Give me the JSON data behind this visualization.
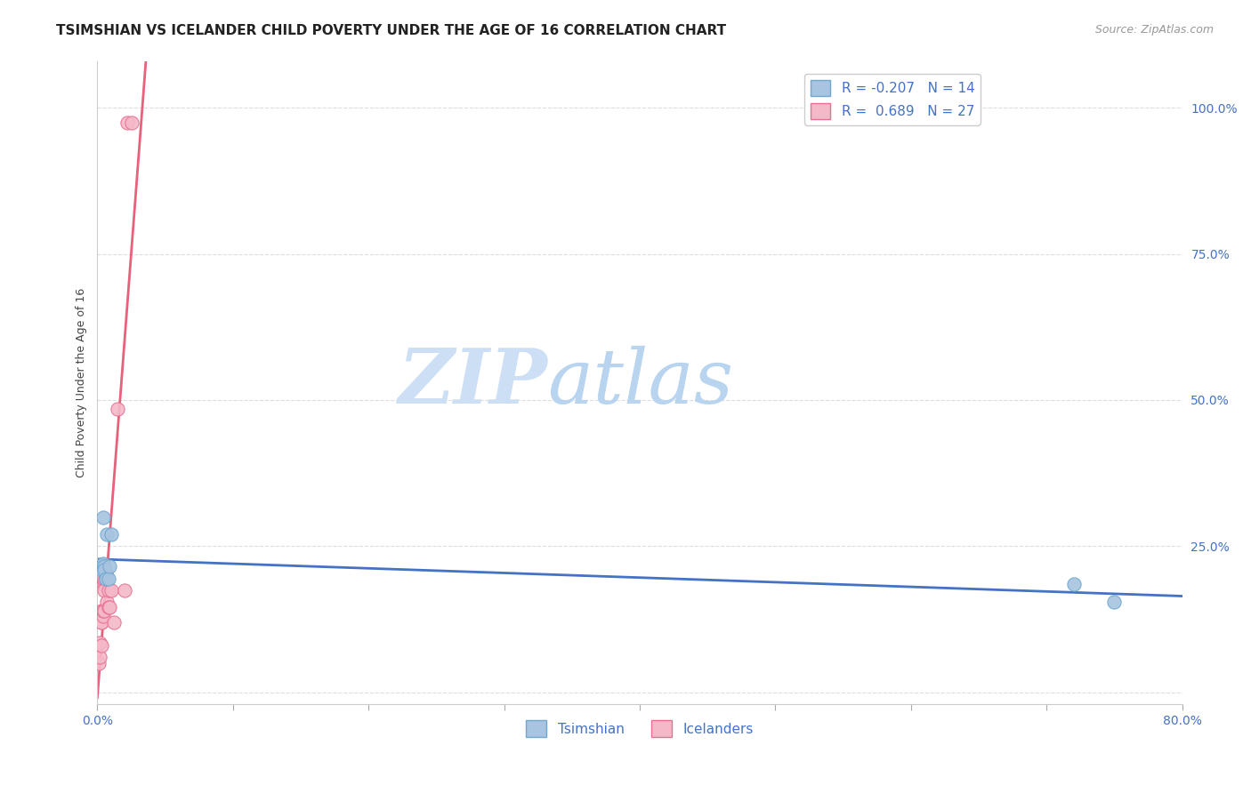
{
  "title": "TSIMSHIAN VS ICELANDER CHILD POVERTY UNDER THE AGE OF 16 CORRELATION CHART",
  "source": "Source: ZipAtlas.com",
  "ylabel": "Child Poverty Under the Age of 16",
  "xlim": [
    0.0,
    0.8
  ],
  "ylim": [
    -0.02,
    1.08
  ],
  "xticks": [
    0.0,
    0.1,
    0.2,
    0.3,
    0.4,
    0.5,
    0.6,
    0.7,
    0.8
  ],
  "xticklabels": [
    "0.0%",
    "",
    "",
    "",
    "",
    "",
    "",
    "",
    "80.0%"
  ],
  "yticks": [
    0.0,
    0.25,
    0.5,
    0.75,
    1.0
  ],
  "yticklabels": [
    "",
    "25.0%",
    "50.0%",
    "75.0%",
    "100.0%"
  ],
  "tsimshian_x": [
    0.004,
    0.003,
    0.003,
    0.004,
    0.004,
    0.005,
    0.005,
    0.006,
    0.007,
    0.008,
    0.009,
    0.01,
    0.72,
    0.75
  ],
  "tsimshian_y": [
    0.3,
    0.215,
    0.21,
    0.215,
    0.22,
    0.215,
    0.21,
    0.195,
    0.27,
    0.195,
    0.215,
    0.27,
    0.185,
    0.155
  ],
  "icelander_x": [
    0.001,
    0.002,
    0.002,
    0.003,
    0.003,
    0.003,
    0.003,
    0.004,
    0.004,
    0.004,
    0.005,
    0.005,
    0.005,
    0.005,
    0.006,
    0.006,
    0.006,
    0.007,
    0.008,
    0.008,
    0.009,
    0.01,
    0.012,
    0.015,
    0.02,
    0.022,
    0.025
  ],
  "icelander_y": [
    0.05,
    0.06,
    0.085,
    0.12,
    0.08,
    0.12,
    0.14,
    0.13,
    0.14,
    0.185,
    0.19,
    0.195,
    0.14,
    0.175,
    0.205,
    0.195,
    0.2,
    0.155,
    0.145,
    0.175,
    0.145,
    0.175,
    0.12,
    0.485,
    0.175,
    0.975,
    0.975
  ],
  "tsimshian_color": "#a8c4e0",
  "icelander_color": "#f4b8c8",
  "tsimshian_edge": "#6fa8d0",
  "icelander_edge": "#e87090",
  "trend_tsimshian_color": "#4472c4",
  "trend_icelander_color": "#e8607a",
  "R_tsimshian": -0.207,
  "N_tsimshian": 14,
  "R_icelander": 0.689,
  "N_icelander": 27,
  "watermark_zip": "ZIP",
  "watermark_atlas": "atlas",
  "watermark_color_zip": "#ccdff5",
  "watermark_color_atlas": "#b8d4ee",
  "grid_color": "#dddddd",
  "background_color": "#ffffff",
  "title_fontsize": 11,
  "label_fontsize": 9,
  "tick_fontsize": 10,
  "marker_size": 120,
  "legend_label_color": "#4472c4"
}
